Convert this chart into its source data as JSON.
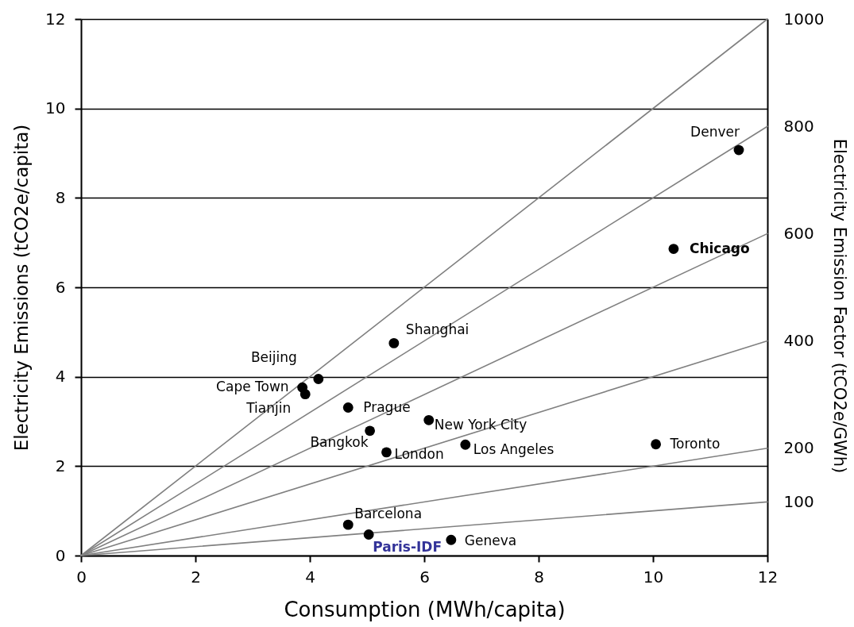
{
  "chart_data": {
    "type": "scatter",
    "xlabel": "Consumption (MWh/capita)",
    "ylabel": "Electricity Emissions (tCO2e/capita)",
    "y2label": "Electricity Emission Factor (tCO2e/GWh)",
    "xlim": [
      0,
      12
    ],
    "xticks": [
      0,
      2,
      4,
      6,
      8,
      10,
      12
    ],
    "ylim": [
      0,
      12
    ],
    "yticks": [
      0,
      2,
      4,
      6,
      8,
      10,
      12
    ],
    "y2lim": [
      0,
      1000
    ],
    "y2ticks": [
      100,
      200,
      400,
      600,
      800,
      1000
    ],
    "grid": "y",
    "marker": "circle",
    "series": [
      {
        "type": "line",
        "axis": "y2",
        "color": "#808080",
        "marker": "none",
        "x": [
          0,
          12
        ],
        "values": [
          0,
          1000
        ]
      },
      {
        "type": "line",
        "axis": "y2",
        "color": "#808080",
        "marker": "none",
        "x": [
          0,
          12
        ],
        "values": [
          0,
          800
        ]
      },
      {
        "type": "line",
        "axis": "y2",
        "color": "#808080",
        "marker": "none",
        "x": [
          0,
          12
        ],
        "values": [
          0,
          600
        ]
      },
      {
        "type": "line",
        "axis": "y2",
        "color": "#808080",
        "marker": "none",
        "x": [
          0,
          12
        ],
        "values": [
          0,
          400
        ]
      },
      {
        "type": "line",
        "axis": "y2",
        "color": "#808080",
        "marker": "none",
        "x": [
          0,
          12
        ],
        "values": [
          0,
          200
        ]
      },
      {
        "type": "line",
        "axis": "y2",
        "color": "#808080",
        "marker": "none",
        "x": [
          0,
          12
        ],
        "values": [
          0,
          100
        ]
      },
      {
        "color": "#000000",
        "x": [
          11.5,
          10.36,
          5.47,
          4.15,
          3.87,
          3.92,
          4.67,
          6.08,
          5.05,
          5.34,
          6.72,
          10.05,
          4.67,
          5.03,
          6.47
        ],
        "values": [
          9.07,
          6.86,
          4.75,
          3.95,
          3.76,
          3.61,
          3.31,
          3.03,
          2.79,
          2.31,
          2.48,
          2.49,
          0.69,
          0.47,
          0.35
        ]
      }
    ],
    "annotations": [
      {
        "text": "Denver",
        "x": 11.5,
        "y": 9.07
      },
      {
        "text": "Chicago",
        "x": 10.36,
        "y": 6.86
      },
      {
        "text": "Shanghai",
        "x": 5.47,
        "y": 4.75
      },
      {
        "text": "Beijing",
        "x": 4.15,
        "y": 3.95
      },
      {
        "text": "Cape Town",
        "x": 3.87,
        "y": 3.76
      },
      {
        "text": "Tianjin",
        "x": 3.92,
        "y": 3.61
      },
      {
        "text": "Prague",
        "x": 4.67,
        "y": 3.31
      },
      {
        "text": "New York City",
        "x": 6.08,
        "y": 3.03
      },
      {
        "text": "Bangkok",
        "x": 5.05,
        "y": 2.79
      },
      {
        "text": "London",
        "x": 5.34,
        "y": 2.31
      },
      {
        "text": "Los Angeles",
        "x": 6.72,
        "y": 2.48
      },
      {
        "text": "Toronto",
        "x": 10.05,
        "y": 2.49
      },
      {
        "text": "Barcelona",
        "x": 4.67,
        "y": 0.69
      },
      {
        "text": "Paris-IDF",
        "x": 5.03,
        "y": 0.47
      },
      {
        "text": "Geneva",
        "x": 6.47,
        "y": 0.35
      }
    ]
  }
}
